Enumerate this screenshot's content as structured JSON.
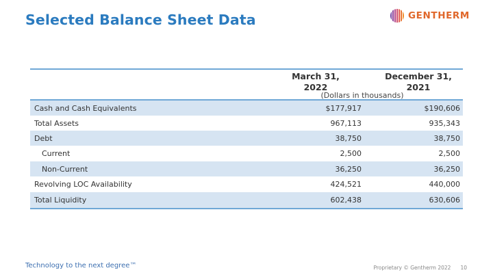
{
  "slide": {
    "title": "Selected Balance Sheet Data",
    "logo_text": "GENTHERM",
    "tagline": "Technology to the next degree™",
    "footer_text": "Proprietary © Gentherm 2022",
    "page_number": "10"
  },
  "table": {
    "col1_header_line1": "March 31,",
    "col1_header_line2": "2022",
    "col2_header_line1": "December 31,",
    "col2_header_line2": "2021",
    "units": "(Dollars in thousands)",
    "rows": [
      {
        "label": "Cash and Cash Equivalents",
        "v1": "$177,917",
        "v2": "$190,606"
      },
      {
        "label": "Total Assets",
        "v1": "967,113",
        "v2": "935,343"
      },
      {
        "label": "Debt",
        "v1": "38,750",
        "v2": "38,750"
      },
      {
        "label": "Current",
        "v1": "2,500",
        "v2": "2,500"
      },
      {
        "label": "Non-Current",
        "v1": "36,250",
        "v2": "36,250"
      },
      {
        "label": "Revolving LOC Availability",
        "v1": "424,521",
        "v2": "440,000"
      },
      {
        "label": "Total Liquidity",
        "v1": "602,438",
        "v2": "630,606"
      }
    ]
  },
  "colors": {
    "title": "#2b7bbf",
    "logo_text": "#e0672a",
    "rule": "#6fa8d6",
    "row_shade": "#d6e4f2"
  }
}
